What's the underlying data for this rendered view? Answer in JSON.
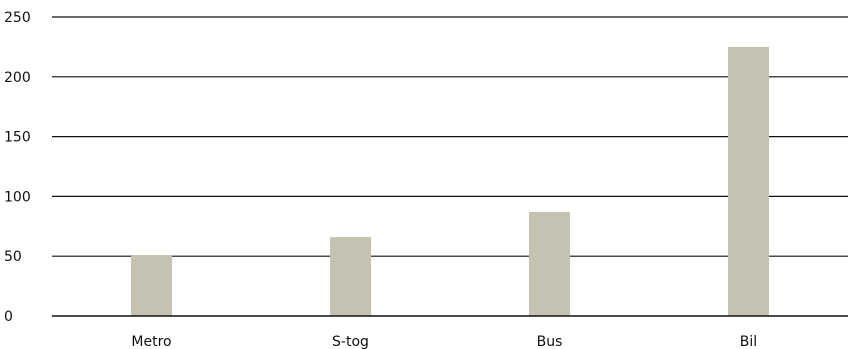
{
  "chart_data": {
    "type": "bar",
    "categories": [
      "Metro",
      "S-tog",
      "Bus",
      "Bil"
    ],
    "values": [
      51,
      66,
      87,
      225
    ],
    "yticks": [
      0,
      50,
      100,
      150,
      200,
      250
    ],
    "ylim": [
      0,
      250
    ],
    "grid": true,
    "title": "",
    "xlabel": "",
    "ylabel": "",
    "colors": {
      "bar": "#c5c2b2",
      "grid": "#111111",
      "axis": "#111111"
    }
  }
}
